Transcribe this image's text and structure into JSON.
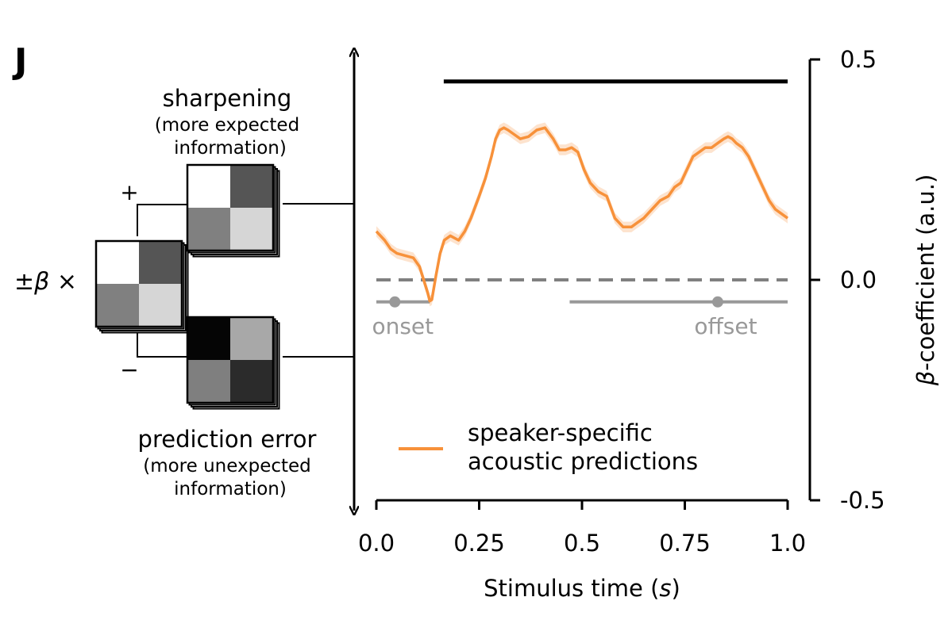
{
  "panel_label": "J",
  "schematic": {
    "top_title": "sharpening",
    "top_sub1": "(more expected",
    "top_sub2": "information)",
    "bottom_title": "prediction error",
    "bottom_sub1": "(more unexpected",
    "bottom_sub2": "information)",
    "plus": "+",
    "minus": "−",
    "beta_pm": "±",
    "beta_symbol": "β",
    "beta_times": " ×",
    "colors": {
      "base": [
        "#ffffff",
        "#555555",
        "#808080",
        "#d6d6d6"
      ],
      "top": [
        "#ffffff",
        "#555555",
        "#808080",
        "#d6d6d6"
      ],
      "bottom": [
        "#050505",
        "#a8a8a8",
        "#7f7f7f",
        "#2b2b2b"
      ]
    }
  },
  "chart_data": {
    "type": "line",
    "xlabel_prefix": "Stimulus time (",
    "xlabel_var": "s",
    "xlabel_suffix": ")",
    "ylabel_var": "β",
    "ylabel_rest": "-coefficient (a.u.)",
    "xlim": [
      0,
      1
    ],
    "ylim": [
      -0.5,
      0.5
    ],
    "xticks": [
      0,
      0.25,
      0.5,
      0.75,
      1.0
    ],
    "xtick_labels": [
      "0.0",
      "0.25",
      "0.5",
      "0.75",
      "1.0"
    ],
    "yticks": [
      0.5,
      0,
      -0.5
    ],
    "ytick_labels": [
      "0.5",
      "0.0",
      "-0.5"
    ],
    "series": [
      {
        "name_line1": "speaker-specific",
        "name_line2": "acoustic predictions",
        "color": "#f7913a",
        "x": [
          0,
          0.02,
          0.035,
          0.05,
          0.07,
          0.09,
          0.105,
          0.115,
          0.125,
          0.13,
          0.135,
          0.145,
          0.155,
          0.165,
          0.18,
          0.2,
          0.215,
          0.23,
          0.25,
          0.265,
          0.28,
          0.29,
          0.3,
          0.31,
          0.32,
          0.335,
          0.35,
          0.37,
          0.39,
          0.41,
          0.43,
          0.445,
          0.46,
          0.475,
          0.49,
          0.505,
          0.52,
          0.54,
          0.56,
          0.58,
          0.6,
          0.62,
          0.635,
          0.65,
          0.67,
          0.69,
          0.71,
          0.725,
          0.74,
          0.755,
          0.77,
          0.785,
          0.8,
          0.815,
          0.83,
          0.845,
          0.855,
          0.865,
          0.875,
          0.89,
          0.905,
          0.92,
          0.94,
          0.955,
          0.97,
          0.985,
          1.0
        ],
        "y": [
          0.11,
          0.09,
          0.07,
          0.06,
          0.055,
          0.05,
          0.03,
          0.0,
          -0.03,
          -0.048,
          -0.045,
          0.01,
          0.06,
          0.09,
          0.1,
          0.09,
          0.11,
          0.14,
          0.19,
          0.23,
          0.28,
          0.32,
          0.34,
          0.345,
          0.34,
          0.33,
          0.32,
          0.325,
          0.34,
          0.345,
          0.32,
          0.295,
          0.295,
          0.3,
          0.29,
          0.25,
          0.22,
          0.2,
          0.19,
          0.14,
          0.12,
          0.12,
          0.13,
          0.14,
          0.16,
          0.18,
          0.19,
          0.21,
          0.22,
          0.25,
          0.28,
          0.29,
          0.3,
          0.3,
          0.31,
          0.32,
          0.325,
          0.32,
          0.31,
          0.3,
          0.28,
          0.25,
          0.21,
          0.18,
          0.16,
          0.15,
          0.14
        ],
        "ci_halfwidth": 0.012
      }
    ],
    "reference_line": {
      "y": 0,
      "style": "dashed",
      "color": "#808080"
    },
    "significance_bar": {
      "x_start": 0.16,
      "x_end": 1.0,
      "y": 0.45,
      "color": "#000000"
    },
    "onset": {
      "label": "onset",
      "x_start": 0,
      "x_end": 0.13,
      "point": 0.045,
      "y": -0.05,
      "color": "#999999"
    },
    "offset": {
      "label": "offset",
      "x_start": 0.47,
      "x_end": 1.0,
      "point": 0.83,
      "y": -0.05,
      "color": "#999999"
    }
  }
}
